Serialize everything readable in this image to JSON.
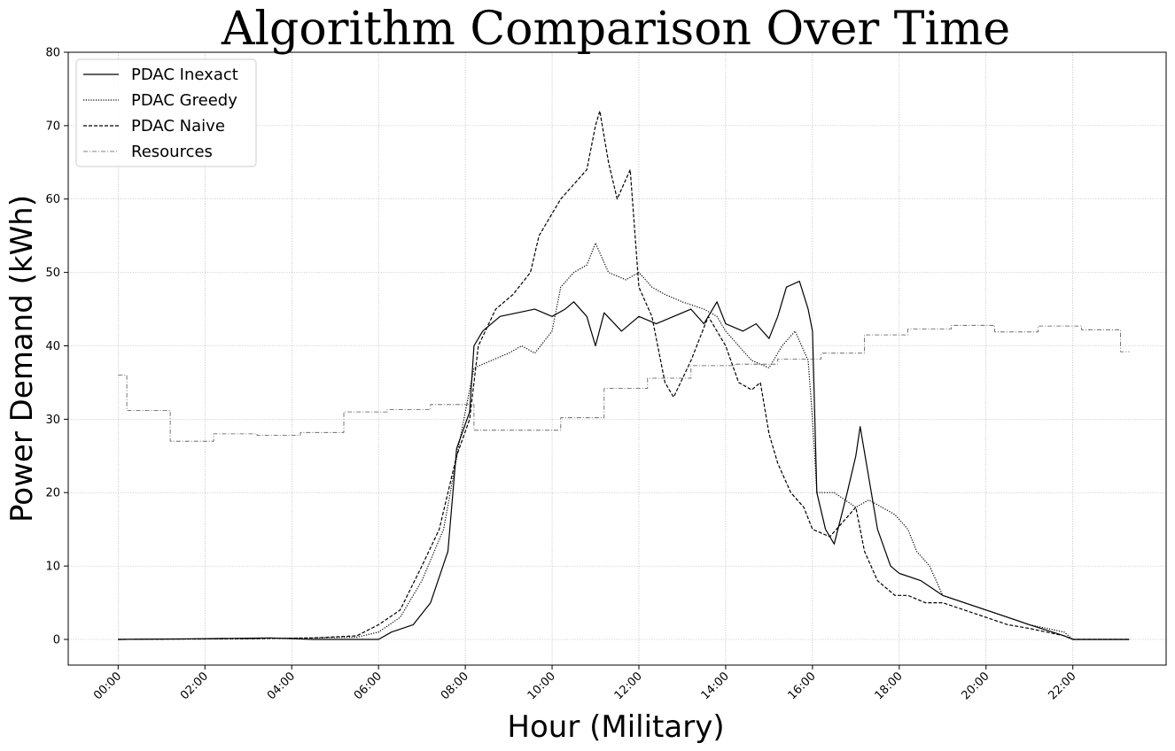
{
  "chart_data": {
    "type": "line",
    "title": "Algorithm Comparison Over Time",
    "xlabel": "Hour (Military)",
    "ylabel": "Power Demand (kWh)",
    "xlim": [
      -1.15,
      24.15
    ],
    "ylim": [
      -3.5,
      80
    ],
    "grid": true,
    "legend_position": "top-left",
    "x_ticks": [
      {
        "value": 0,
        "label": "00:00"
      },
      {
        "value": 2,
        "label": "02:00"
      },
      {
        "value": 4,
        "label": "04:00"
      },
      {
        "value": 6,
        "label": "06:00"
      },
      {
        "value": 8,
        "label": "08:00"
      },
      {
        "value": 10,
        "label": "10:00"
      },
      {
        "value": 12,
        "label": "12:00"
      },
      {
        "value": 14,
        "label": "14:00"
      },
      {
        "value": 16,
        "label": "16:00"
      },
      {
        "value": 18,
        "label": "18:00"
      },
      {
        "value": 20,
        "label": "20:00"
      },
      {
        "value": 22,
        "label": "22:00"
      }
    ],
    "y_ticks": [
      0,
      10,
      20,
      30,
      40,
      50,
      60,
      70,
      80
    ],
    "series": [
      {
        "name": "PDAC Inexact",
        "style": "solid",
        "color": "#000000",
        "points": [
          [
            0,
            0
          ],
          [
            2,
            0.1
          ],
          [
            3.5,
            0.2
          ],
          [
            4.5,
            0
          ],
          [
            6,
            0
          ],
          [
            6.3,
            1
          ],
          [
            6.8,
            2
          ],
          [
            7.2,
            5
          ],
          [
            7.6,
            12
          ],
          [
            7.8,
            26
          ],
          [
            8.1,
            31
          ],
          [
            8.2,
            40
          ],
          [
            8.4,
            42
          ],
          [
            8.8,
            44
          ],
          [
            9.2,
            44.5
          ],
          [
            9.6,
            45
          ],
          [
            10,
            44
          ],
          [
            10.3,
            45
          ],
          [
            10.5,
            46
          ],
          [
            10.8,
            44
          ],
          [
            11,
            40
          ],
          [
            11.2,
            44.5
          ],
          [
            11.6,
            42
          ],
          [
            12,
            44
          ],
          [
            12.4,
            43
          ],
          [
            12.8,
            44
          ],
          [
            13.2,
            45
          ],
          [
            13.5,
            43
          ],
          [
            13.8,
            46
          ],
          [
            14,
            43
          ],
          [
            14.4,
            42
          ],
          [
            14.7,
            43
          ],
          [
            15,
            41
          ],
          [
            15.2,
            44
          ],
          [
            15.4,
            48
          ],
          [
            15.7,
            48.8
          ],
          [
            15.9,
            45
          ],
          [
            16.0,
            42
          ],
          [
            16.1,
            20
          ],
          [
            16.3,
            15
          ],
          [
            16.5,
            13
          ],
          [
            16.8,
            20
          ],
          [
            17.0,
            25
          ],
          [
            17.1,
            29
          ],
          [
            17.3,
            22
          ],
          [
            17.5,
            15
          ],
          [
            17.8,
            10
          ],
          [
            18.0,
            9
          ],
          [
            18.5,
            8
          ],
          [
            19,
            6
          ],
          [
            19.5,
            5
          ],
          [
            20,
            4
          ],
          [
            20.5,
            3
          ],
          [
            21,
            2
          ],
          [
            21.8,
            0.5
          ],
          [
            22,
            0
          ],
          [
            23.3,
            0
          ]
        ]
      },
      {
        "name": "PDAC Greedy",
        "style": "dotted",
        "color": "#000000",
        "points": [
          [
            0,
            0
          ],
          [
            3,
            0.1
          ],
          [
            4.5,
            0.2
          ],
          [
            5.5,
            0.3
          ],
          [
            6,
            1
          ],
          [
            6.5,
            3
          ],
          [
            7,
            8
          ],
          [
            7.5,
            15
          ],
          [
            7.9,
            28
          ],
          [
            8.2,
            37
          ],
          [
            8.6,
            38
          ],
          [
            9,
            39
          ],
          [
            9.3,
            40
          ],
          [
            9.6,
            39
          ],
          [
            10,
            42
          ],
          [
            10.2,
            48
          ],
          [
            10.5,
            50
          ],
          [
            10.8,
            51
          ],
          [
            11.0,
            54
          ],
          [
            11.3,
            50
          ],
          [
            11.7,
            49
          ],
          [
            12,
            50
          ],
          [
            12.3,
            48
          ],
          [
            12.6,
            47
          ],
          [
            13,
            46
          ],
          [
            13.5,
            45
          ],
          [
            13.8,
            44
          ],
          [
            14,
            42
          ],
          [
            14.3,
            40
          ],
          [
            14.6,
            38
          ],
          [
            15,
            37
          ],
          [
            15.3,
            40
          ],
          [
            15.6,
            42
          ],
          [
            15.9,
            38
          ],
          [
            16.0,
            30
          ],
          [
            16.1,
            20
          ],
          [
            16.5,
            20
          ],
          [
            17.0,
            18
          ],
          [
            17.3,
            19
          ],
          [
            17.6,
            18
          ],
          [
            17.9,
            17
          ],
          [
            18.2,
            15
          ],
          [
            18.4,
            12
          ],
          [
            18.7,
            10
          ],
          [
            19,
            6
          ],
          [
            19.5,
            5
          ],
          [
            20,
            4
          ],
          [
            20.5,
            3
          ],
          [
            21,
            2
          ],
          [
            21.8,
            1
          ],
          [
            22,
            0
          ],
          [
            23.3,
            0
          ]
        ]
      },
      {
        "name": "PDAC Naive",
        "style": "dashed",
        "color": "#000000",
        "points": [
          [
            0,
            0
          ],
          [
            3,
            0.1
          ],
          [
            4.5,
            0.2
          ],
          [
            5.5,
            0.5
          ],
          [
            6,
            2
          ],
          [
            6.5,
            4
          ],
          [
            7,
            10
          ],
          [
            7.4,
            15
          ],
          [
            7.8,
            25
          ],
          [
            8.1,
            30
          ],
          [
            8.3,
            40
          ],
          [
            8.7,
            45
          ],
          [
            9.1,
            47
          ],
          [
            9.5,
            50
          ],
          [
            9.7,
            55
          ],
          [
            10,
            58
          ],
          [
            10.2,
            60
          ],
          [
            10.5,
            62
          ],
          [
            10.8,
            64
          ],
          [
            11.0,
            70
          ],
          [
            11.1,
            72
          ],
          [
            11.3,
            65
          ],
          [
            11.5,
            60
          ],
          [
            11.8,
            64
          ],
          [
            12,
            48
          ],
          [
            12.3,
            44
          ],
          [
            12.6,
            35
          ],
          [
            12.8,
            33
          ],
          [
            13.2,
            38
          ],
          [
            13.6,
            44
          ],
          [
            14,
            40
          ],
          [
            14.3,
            35
          ],
          [
            14.6,
            34
          ],
          [
            14.8,
            35
          ],
          [
            15,
            28
          ],
          [
            15.2,
            24
          ],
          [
            15.5,
            20
          ],
          [
            15.8,
            18
          ],
          [
            16,
            15
          ],
          [
            16.4,
            14
          ],
          [
            16.7,
            16
          ],
          [
            17.0,
            18
          ],
          [
            17.2,
            12
          ],
          [
            17.5,
            8
          ],
          [
            17.9,
            6
          ],
          [
            18.2,
            6
          ],
          [
            18.6,
            5
          ],
          [
            19,
            5
          ],
          [
            19.5,
            4
          ],
          [
            20,
            3
          ],
          [
            20.5,
            2
          ],
          [
            21,
            1.5
          ],
          [
            21.8,
            0.5
          ],
          [
            22,
            0
          ],
          [
            23.3,
            0
          ]
        ]
      },
      {
        "name": "Resources",
        "style": "dashdot",
        "color": "#555555",
        "points": [
          [
            0,
            36
          ],
          [
            0.2,
            36
          ],
          [
            0.2,
            31.2
          ],
          [
            1.2,
            31.2
          ],
          [
            1.2,
            27
          ],
          [
            2.2,
            27
          ],
          [
            2.2,
            28
          ],
          [
            3.2,
            28
          ],
          [
            3.2,
            27.8
          ],
          [
            4.2,
            27.8
          ],
          [
            4.2,
            28.2
          ],
          [
            5.2,
            28.2
          ],
          [
            5.2,
            31
          ],
          [
            6.2,
            31
          ],
          [
            6.2,
            31.3
          ],
          [
            7.2,
            31.3
          ],
          [
            7.2,
            32
          ],
          [
            8.2,
            32
          ],
          [
            8.2,
            28.5
          ],
          [
            10.2,
            28.5
          ],
          [
            10.2,
            30.2
          ],
          [
            11.2,
            30.2
          ],
          [
            11.2,
            34.2
          ],
          [
            12.2,
            34.2
          ],
          [
            12.2,
            35.6
          ],
          [
            13.2,
            35.6
          ],
          [
            13.2,
            37.3
          ],
          [
            14.2,
            37.3
          ],
          [
            14.2,
            37.5
          ],
          [
            15.2,
            37.5
          ],
          [
            15.2,
            38.2
          ],
          [
            16.2,
            38.2
          ],
          [
            16.2,
            39
          ],
          [
            17.2,
            39
          ],
          [
            17.2,
            41.5
          ],
          [
            18.2,
            41.5
          ],
          [
            18.2,
            42.3
          ],
          [
            19.2,
            42.3
          ],
          [
            19.2,
            42.8
          ],
          [
            20.2,
            42.8
          ],
          [
            20.2,
            41.9
          ],
          [
            21.2,
            41.9
          ],
          [
            21.2,
            42.7
          ],
          [
            22.2,
            42.7
          ],
          [
            22.2,
            42.2
          ],
          [
            23.1,
            42.2
          ],
          [
            23.1,
            39.2
          ],
          [
            23.3,
            39.2
          ]
        ]
      }
    ]
  }
}
